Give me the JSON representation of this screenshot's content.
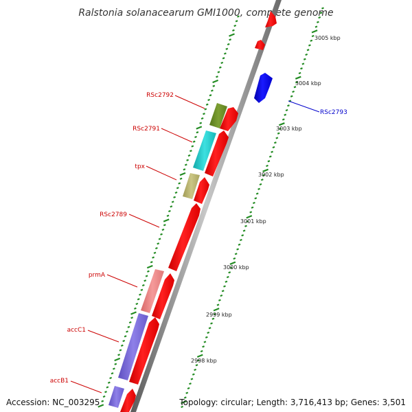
{
  "title": "Ralstonia solanacearum GMI1000, complete genome",
  "footer": {
    "accession": "Accession: NC_003295",
    "summary": "Topology: circular; Length: 3,716,413 bp; Genes: 3,501"
  },
  "scale_labels": [
    "3005 kbp",
    "3004 kbp",
    "3003 kbp",
    "3002 kbp",
    "3001 kbp",
    "3000 kbp",
    "2999 kbp",
    "2998 kbp"
  ],
  "genes": [
    {
      "label": "RSc2793",
      "color": "#0000cc",
      "feature_color": "#1010e0",
      "strand": "plus"
    },
    {
      "label": "RSc2792",
      "color": "#cc0000",
      "feature_color": "#6b8e23",
      "strand": "minus"
    },
    {
      "label": "RSc2791",
      "color": "#cc0000",
      "feature_color": "#19c6c6",
      "strand": "minus"
    },
    {
      "label": "tpx",
      "color": "#cc0000",
      "feature_color": "#b5b06a",
      "strand": "minus"
    },
    {
      "label": "RSc2789",
      "color": "#cc0000",
      "feature_color": "#ff0000",
      "strand": "minus"
    },
    {
      "label": "prmA",
      "color": "#cc0000",
      "feature_color": "#ee8080",
      "strand": "minus"
    },
    {
      "label": "accC1",
      "color": "#cc0000",
      "feature_color": "#7b68d8",
      "strand": "minus"
    },
    {
      "label": "accB1",
      "color": "#cc0000",
      "feature_color": "#7b68d8",
      "strand": "minus"
    }
  ],
  "colors": {
    "backbone": "#888888",
    "cds": "#ff0000",
    "plus_strand_gene": "#0000ff",
    "tick": "#228b22"
  }
}
